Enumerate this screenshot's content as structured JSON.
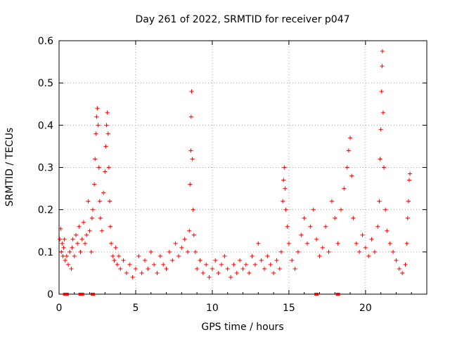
{
  "chart_data": {
    "type": "scatter",
    "title": "Day 261 of 2022, SRMTID for receiver p047",
    "xlabel": "GPS time / hours",
    "ylabel": "SRMTID / TECUs",
    "xlim": [
      0,
      24
    ],
    "ylim": [
      0,
      0.6
    ],
    "xticks": [
      0,
      5,
      10,
      15,
      20
    ],
    "yticks": [
      0,
      0.1,
      0.2,
      0.3,
      0.4,
      0.5,
      0.6
    ],
    "xtick_labels": [
      "0",
      "5",
      "10",
      "15",
      "20"
    ],
    "ytick_labels": [
      "0",
      "0.1",
      "0.2",
      "0.3",
      "0.4",
      "0.5",
      "0.6"
    ],
    "grid": true,
    "marker": "+",
    "color": "#ff0000",
    "series": [
      {
        "name": "SRMTID",
        "points": [
          [
            0.05,
            0.13
          ],
          [
            0.1,
            0.155
          ],
          [
            0.15,
            0.1
          ],
          [
            0.2,
            0.12
          ],
          [
            0.25,
            0.09
          ],
          [
            0.3,
            0.11
          ],
          [
            0.35,
            0.13
          ],
          [
            0.4,
            0.08
          ],
          [
            0.5,
            0.09
          ],
          [
            0.6,
            0.07
          ],
          [
            0.7,
            0.1
          ],
          [
            0.8,
            0.06
          ],
          [
            0.85,
            0.11
          ],
          [
            0.9,
            0.13
          ],
          [
            1.0,
            0.09
          ],
          [
            1.1,
            0.14
          ],
          [
            1.2,
            0.12
          ],
          [
            1.3,
            0.16
          ],
          [
            1.4,
            0.1
          ],
          [
            1.5,
            0.13
          ],
          [
            1.6,
            0.17
          ],
          [
            1.7,
            0.12
          ],
          [
            1.8,
            0.14
          ],
          [
            1.9,
            0.22
          ],
          [
            2.0,
            0.15
          ],
          [
            2.1,
            0.1
          ],
          [
            2.15,
            0.18
          ],
          [
            2.2,
            0.2
          ],
          [
            2.3,
            0.26
          ],
          [
            2.35,
            0.32
          ],
          [
            2.4,
            0.38
          ],
          [
            2.45,
            0.42
          ],
          [
            2.5,
            0.44
          ],
          [
            2.55,
            0.4
          ],
          [
            2.6,
            0.3
          ],
          [
            2.65,
            0.22
          ],
          [
            2.7,
            0.18
          ],
          [
            2.8,
            0.15
          ],
          [
            2.9,
            0.24
          ],
          [
            3.0,
            0.29
          ],
          [
            3.05,
            0.35
          ],
          [
            3.1,
            0.4
          ],
          [
            3.15,
            0.43
          ],
          [
            3.2,
            0.38
          ],
          [
            3.25,
            0.3
          ],
          [
            3.3,
            0.22
          ],
          [
            3.35,
            0.16
          ],
          [
            3.4,
            0.12
          ],
          [
            3.5,
            0.09
          ],
          [
            3.6,
            0.08
          ],
          [
            3.7,
            0.11
          ],
          [
            3.8,
            0.07
          ],
          [
            3.9,
            0.09
          ],
          [
            4.0,
            0.06
          ],
          [
            4.2,
            0.08
          ],
          [
            4.4,
            0.05
          ],
          [
            4.6,
            0.07
          ],
          [
            4.8,
            0.04
          ],
          [
            5.0,
            0.06
          ],
          [
            5.2,
            0.09
          ],
          [
            5.4,
            0.05
          ],
          [
            5.6,
            0.08
          ],
          [
            5.8,
            0.06
          ],
          [
            6.0,
            0.1
          ],
          [
            6.2,
            0.07
          ],
          [
            6.4,
            0.05
          ],
          [
            6.6,
            0.09
          ],
          [
            6.8,
            0.07
          ],
          [
            7.0,
            0.06
          ],
          [
            7.2,
            0.1
          ],
          [
            7.4,
            0.08
          ],
          [
            7.6,
            0.12
          ],
          [
            7.8,
            0.09
          ],
          [
            8.0,
            0.11
          ],
          [
            8.2,
            0.13
          ],
          [
            8.4,
            0.1
          ],
          [
            8.5,
            0.15
          ],
          [
            8.55,
            0.26
          ],
          [
            8.6,
            0.34
          ],
          [
            8.62,
            0.42
          ],
          [
            8.65,
            0.48
          ],
          [
            8.7,
            0.32
          ],
          [
            8.75,
            0.2
          ],
          [
            8.8,
            0.14
          ],
          [
            8.9,
            0.1
          ],
          [
            9.0,
            0.06
          ],
          [
            9.2,
            0.08
          ],
          [
            9.4,
            0.05
          ],
          [
            9.6,
            0.07
          ],
          [
            9.8,
            0.04
          ],
          [
            10.0,
            0.06
          ],
          [
            10.2,
            0.08
          ],
          [
            10.4,
            0.05
          ],
          [
            10.6,
            0.07
          ],
          [
            10.8,
            0.09
          ],
          [
            11.0,
            0.06
          ],
          [
            11.2,
            0.04
          ],
          [
            11.4,
            0.07
          ],
          [
            11.6,
            0.05
          ],
          [
            11.8,
            0.08
          ],
          [
            12.0,
            0.06
          ],
          [
            12.2,
            0.07
          ],
          [
            12.4,
            0.05
          ],
          [
            12.6,
            0.09
          ],
          [
            12.8,
            0.07
          ],
          [
            13.0,
            0.12
          ],
          [
            13.2,
            0.08
          ],
          [
            13.4,
            0.06
          ],
          [
            13.6,
            0.09
          ],
          [
            13.8,
            0.07
          ],
          [
            14.0,
            0.05
          ],
          [
            14.2,
            0.08
          ],
          [
            14.4,
            0.06
          ],
          [
            14.5,
            0.1
          ],
          [
            14.6,
            0.22
          ],
          [
            14.65,
            0.27
          ],
          [
            14.7,
            0.3
          ],
          [
            14.75,
            0.25
          ],
          [
            14.8,
            0.2
          ],
          [
            14.9,
            0.16
          ],
          [
            15.0,
            0.12
          ],
          [
            15.2,
            0.08
          ],
          [
            15.4,
            0.06
          ],
          [
            15.6,
            0.1
          ],
          [
            15.8,
            0.14
          ],
          [
            16.0,
            0.18
          ],
          [
            16.2,
            0.12
          ],
          [
            16.4,
            0.16
          ],
          [
            16.6,
            0.2
          ],
          [
            16.8,
            0.13
          ],
          [
            17.0,
            0.09
          ],
          [
            17.2,
            0.11
          ],
          [
            17.4,
            0.16
          ],
          [
            17.6,
            0.1
          ],
          [
            17.8,
            0.22
          ],
          [
            18.0,
            0.18
          ],
          [
            18.2,
            0.12
          ],
          [
            18.4,
            0.2
          ],
          [
            18.6,
            0.25
          ],
          [
            18.8,
            0.3
          ],
          [
            18.9,
            0.34
          ],
          [
            19.0,
            0.37
          ],
          [
            19.1,
            0.28
          ],
          [
            19.2,
            0.18
          ],
          [
            19.4,
            0.12
          ],
          [
            19.6,
            0.1
          ],
          [
            19.8,
            0.14
          ],
          [
            20.0,
            0.11
          ],
          [
            20.2,
            0.09
          ],
          [
            20.4,
            0.13
          ],
          [
            20.6,
            0.1
          ],
          [
            20.8,
            0.16
          ],
          [
            20.9,
            0.22
          ],
          [
            20.95,
            0.32
          ],
          [
            21.0,
            0.39
          ],
          [
            21.05,
            0.48
          ],
          [
            21.08,
            0.54
          ],
          [
            21.1,
            0.575
          ],
          [
            21.15,
            0.43
          ],
          [
            21.2,
            0.3
          ],
          [
            21.3,
            0.2
          ],
          [
            21.4,
            0.15
          ],
          [
            21.6,
            0.12
          ],
          [
            21.8,
            0.1
          ],
          [
            22.0,
            0.08
          ],
          [
            22.2,
            0.06
          ],
          [
            22.4,
            0.05
          ],
          [
            22.6,
            0.07
          ],
          [
            22.7,
            0.12
          ],
          [
            22.75,
            0.18
          ],
          [
            22.8,
            0.22
          ],
          [
            22.85,
            0.27
          ],
          [
            22.9,
            0.285
          ]
        ]
      }
    ],
    "zero_markers_x": [
      0.4,
      0.5,
      1.4,
      1.5,
      2.2,
      16.8,
      18.2
    ]
  }
}
